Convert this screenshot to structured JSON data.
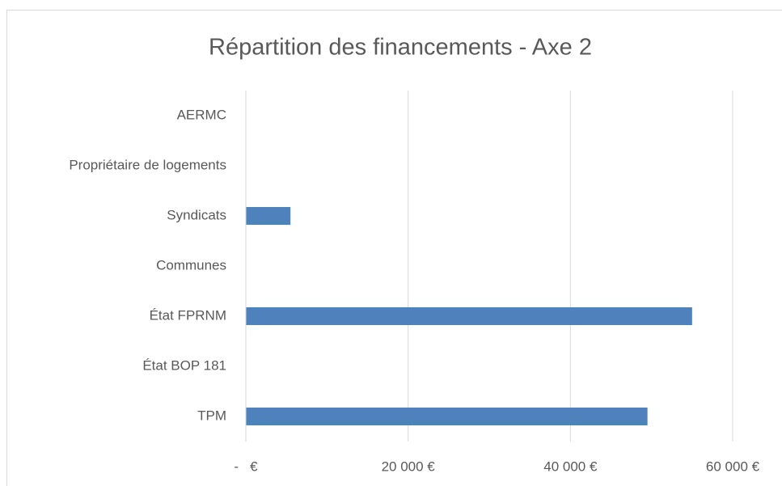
{
  "chart_data": {
    "type": "hbar",
    "title": "Répartition des financements - Axe 2",
    "categories": [
      "AERMC",
      "Propriétaire de logements",
      "Syndicats",
      "Communes",
      "État FPRNM",
      "État BOP 181",
      "TPM"
    ],
    "values": [
      0,
      0,
      5500,
      0,
      55000,
      0,
      49500
    ],
    "color": "#4f81bd",
    "xlim": [
      0,
      60000
    ],
    "xticks": [
      {
        "value": 0,
        "label": "-   €"
      },
      {
        "value": 20000,
        "label": "20 000 €"
      },
      {
        "value": 40000,
        "label": "40 000 €"
      },
      {
        "value": 60000,
        "label": "60 000 €"
      }
    ],
    "grid": true
  }
}
